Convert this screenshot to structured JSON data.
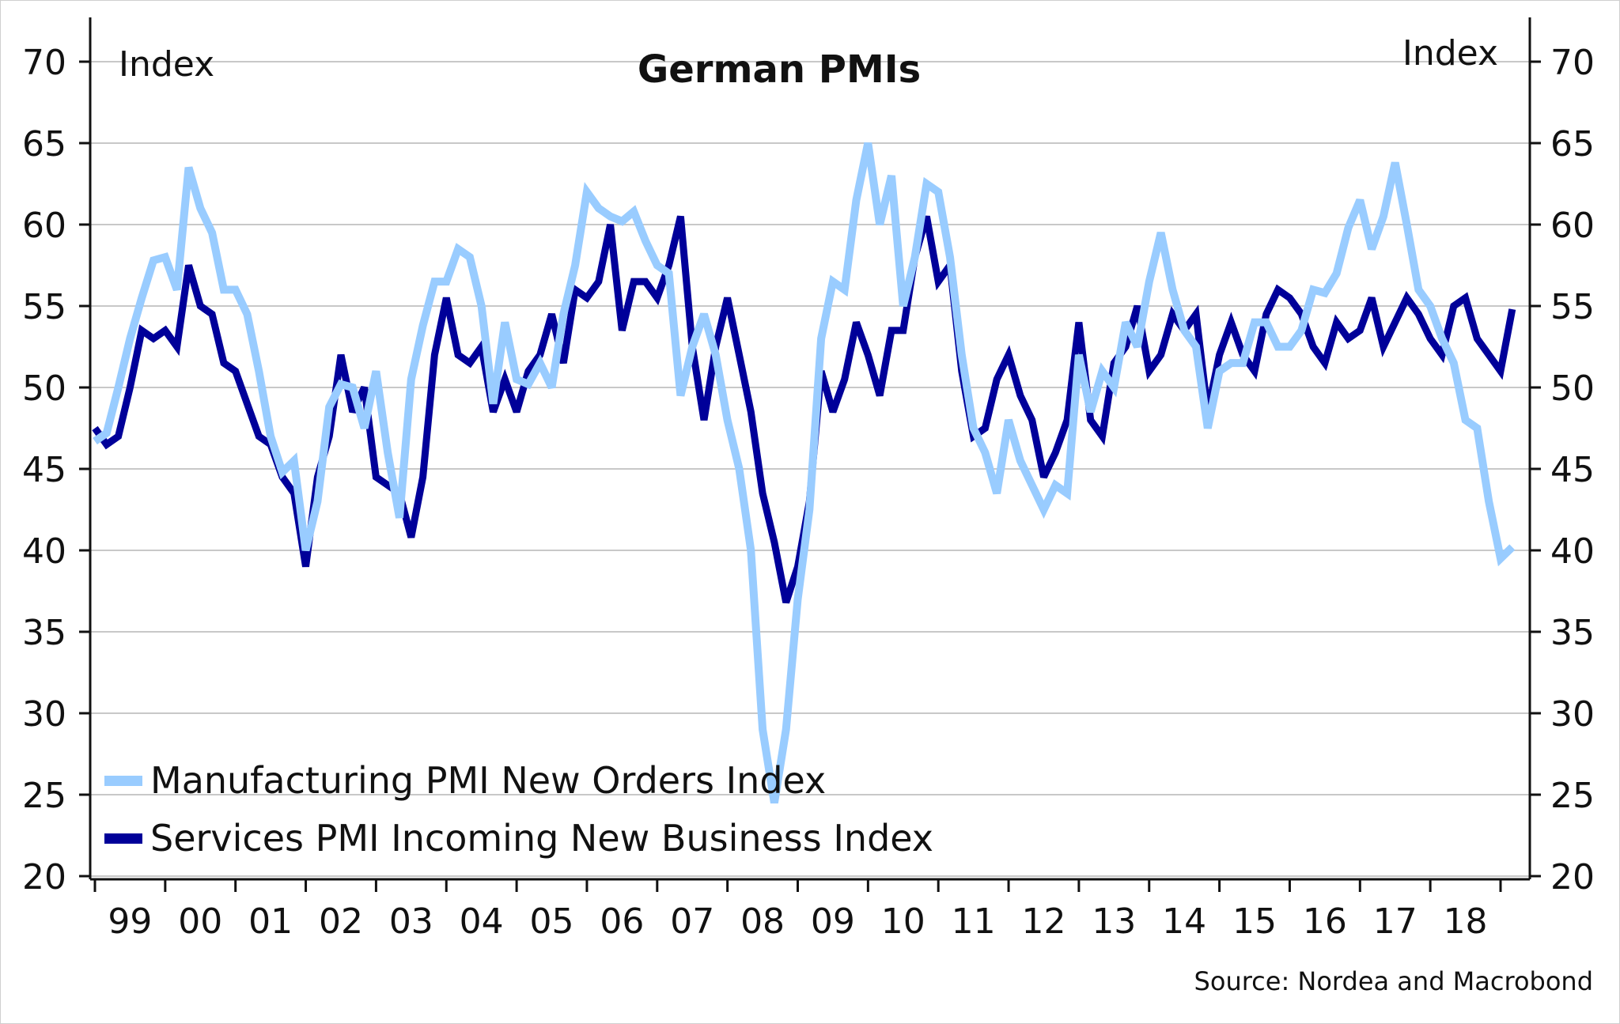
{
  "chart_data": {
    "type": "line",
    "title": "German PMIs",
    "ylabel_left": "Index",
    "ylabel_right": "Index",
    "xlabel": "",
    "ylim": [
      20,
      70
    ],
    "y_ticks": [
      20,
      25,
      30,
      35,
      40,
      45,
      50,
      55,
      60,
      65,
      70
    ],
    "x_range": [
      1999,
      2019.2
    ],
    "x_tick_labels": [
      "99",
      "00",
      "01",
      "02",
      "03",
      "04",
      "05",
      "06",
      "07",
      "08",
      "09",
      "10",
      "11",
      "12",
      "13",
      "14",
      "15",
      "16",
      "17",
      "18"
    ],
    "grid": true,
    "legend_position": "bottom-left",
    "source": "Source: Nordea and Macrobond",
    "series": [
      {
        "name": "Manufacturing PMI New Orders Index",
        "color": "#99ccff",
        "sampling": "bi-monthly from Jan 1999",
        "values": [
          46.7,
          47.2,
          50.0,
          53.0,
          55.5,
          57.8,
          58.0,
          56.0,
          63.5,
          61.0,
          59.5,
          56.0,
          56.0,
          54.5,
          51.0,
          47.0,
          44.8,
          45.5,
          40.0,
          43.0,
          48.8,
          50.2,
          50.0,
          47.5,
          51.0,
          46.0,
          42.0,
          50.5,
          53.8,
          56.5,
          56.5,
          58.5,
          58.0,
          55.0,
          49.0,
          54.0,
          50.5,
          50.2,
          51.5,
          50.0,
          54.5,
          57.5,
          62.0,
          61.0,
          60.5,
          60.2,
          60.8,
          59.0,
          57.5,
          57.0,
          49.5,
          52.5,
          54.5,
          52.0,
          48.0,
          45.0,
          40.0,
          29.0,
          24.5,
          29.0,
          37.0,
          42.5,
          53.0,
          56.5,
          56.0,
          61.5,
          65.0,
          60.0,
          63.0,
          55.0,
          58.0,
          62.5,
          62.0,
          58.0,
          52.0,
          47.5,
          46.0,
          43.5,
          48.0,
          45.5,
          44.0,
          42.5,
          44.0,
          43.5,
          52.0,
          48.5,
          51.0,
          50.0,
          54.0,
          52.5,
          56.5,
          59.5,
          56.0,
          53.5,
          52.5,
          47.5,
          51.0,
          51.5,
          51.5,
          54.0,
          54.0,
          52.5,
          52.5,
          53.5,
          56.0,
          55.8,
          57.0,
          59.8,
          61.5,
          58.5,
          60.5,
          63.8,
          60.0,
          56.0,
          55.0,
          53.0,
          51.5,
          48.0,
          47.5,
          43.0,
          39.5,
          40.2
        ]
      },
      {
        "name": "Services PMI Incoming New Business Index",
        "color": "#000099",
        "sampling": "bi-monthly from Jan 1999",
        "values": [
          47.5,
          46.5,
          47.0,
          50.0,
          53.5,
          53.0,
          53.5,
          52.5,
          57.5,
          55.0,
          54.5,
          51.5,
          51.0,
          49.0,
          47.0,
          46.5,
          44.5,
          43.5,
          39.0,
          44.5,
          47.0,
          52.0,
          48.5,
          50.0,
          44.5,
          44.0,
          43.5,
          40.8,
          44.5,
          52.0,
          55.5,
          52.0,
          51.5,
          52.5,
          48.5,
          50.5,
          48.5,
          51.0,
          52.0,
          54.5,
          51.5,
          56.0,
          55.5,
          56.5,
          60.0,
          53.5,
          56.5,
          56.5,
          55.5,
          57.5,
          60.5,
          52.5,
          48.0,
          52.5,
          55.5,
          52.0,
          48.5,
          43.5,
          40.5,
          36.8,
          39.0,
          43.0,
          51.0,
          48.5,
          50.5,
          54.0,
          52.0,
          49.5,
          53.5,
          53.5,
          58.0,
          60.5,
          56.5,
          57.5,
          51.0,
          47.0,
          47.5,
          50.5,
          52.0,
          49.5,
          48.0,
          44.5,
          46.0,
          48.0,
          54.0,
          48.0,
          47.0,
          51.5,
          52.5,
          55.0,
          51.0,
          52.0,
          54.5,
          53.5,
          54.5,
          48.5,
          52.0,
          54.0,
          52.0,
          51.0,
          54.5,
          56.0,
          55.5,
          54.5,
          52.5,
          51.5,
          54.0,
          53.0,
          53.5,
          55.5,
          52.5,
          54.0,
          55.5,
          54.5,
          53.0,
          52.0,
          55.0,
          55.5,
          53.0,
          52.0,
          51.0,
          54.8
        ]
      }
    ]
  }
}
